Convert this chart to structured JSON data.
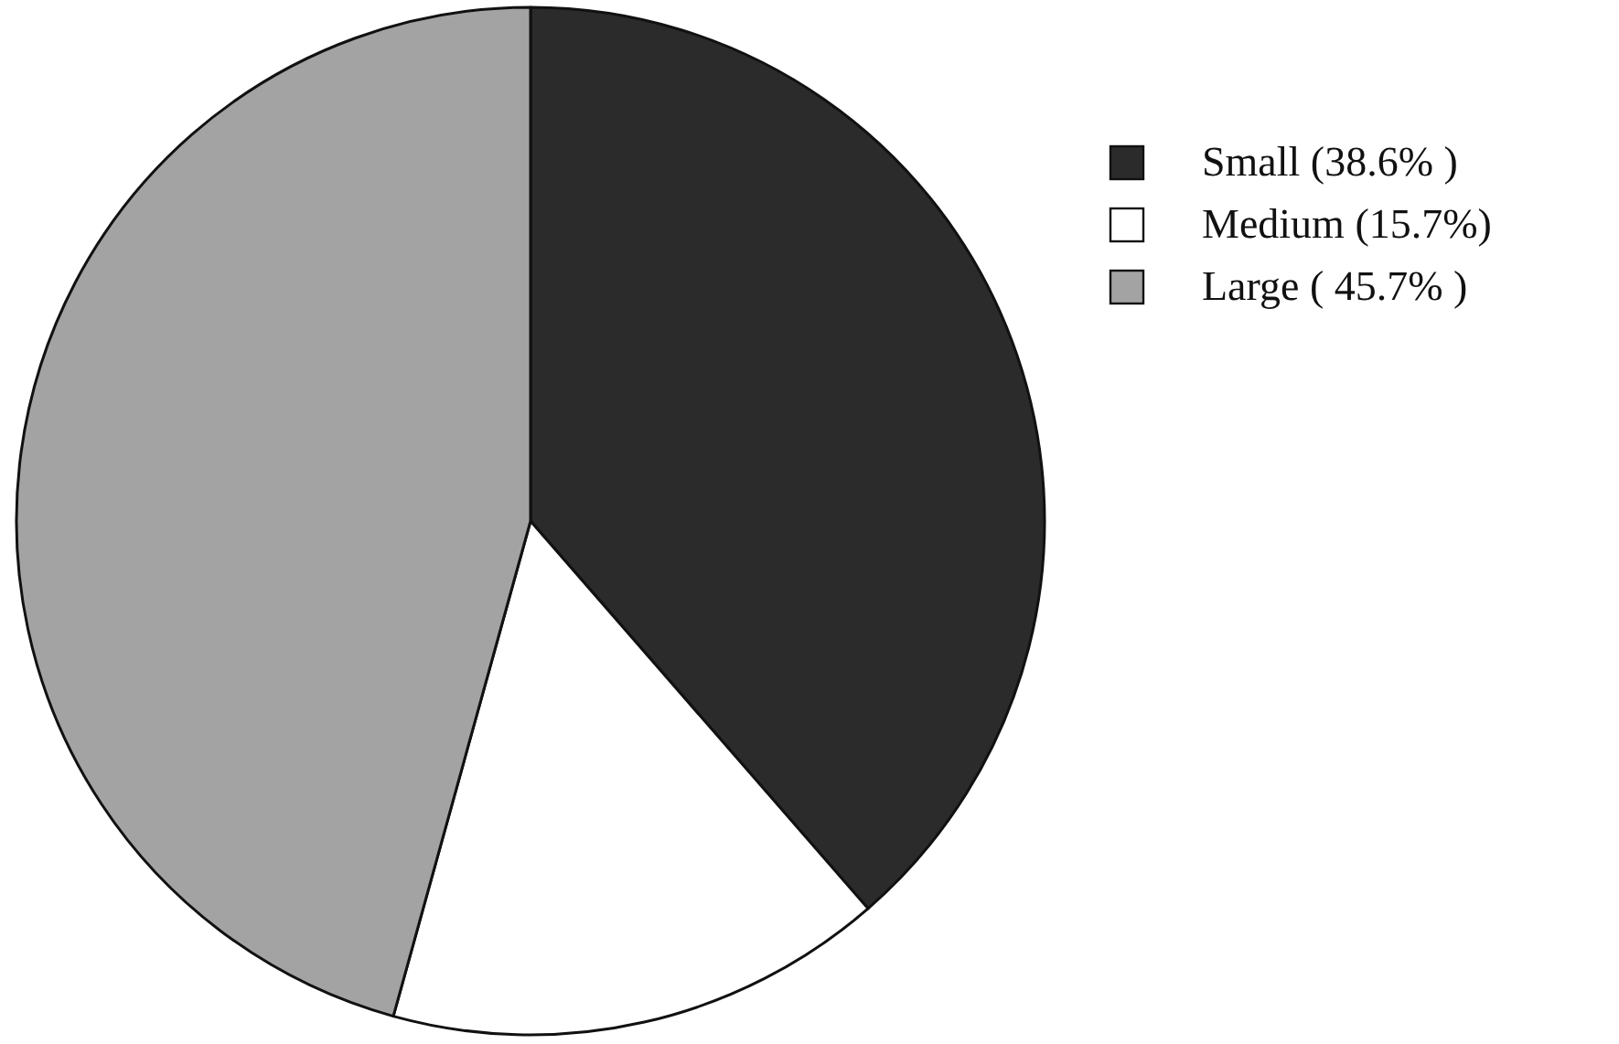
{
  "chart_data": {
    "type": "pie",
    "categories": [
      "Small (38.6% )",
      "Medium (15.7%)",
      "Large ( 45.7% )"
    ],
    "values": [
      38.6,
      15.7,
      45.7
    ],
    "colors": [
      "#2b2b2b",
      "#ffffff",
      "#a3a3a3"
    ],
    "legend": "top right"
  }
}
